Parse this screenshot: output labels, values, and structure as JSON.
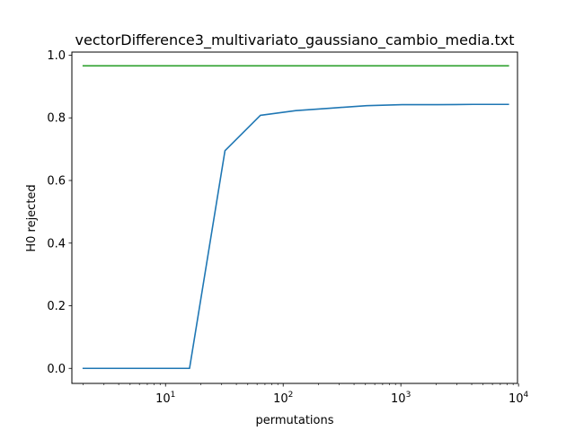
{
  "chart_data": {
    "type": "line",
    "title": "vectorDifference3_multivariato_gaussiano_cambio_media.txt",
    "xlabel": "permutations",
    "ylabel": "H0 rejected",
    "xscale": "log",
    "xlim": [
      1.6,
      9800
    ],
    "ylim": [
      -0.048,
      1.01
    ],
    "grid": false,
    "legend": "none",
    "xticks": [
      {
        "value": 10,
        "base": "10",
        "exp": "1"
      },
      {
        "value": 100,
        "base": "10",
        "exp": "2"
      },
      {
        "value": 1000,
        "base": "10",
        "exp": "3"
      },
      {
        "value": 10000,
        "base": "10",
        "exp": "4"
      }
    ],
    "yticks": [
      {
        "value": 0.0,
        "label": "0.0"
      },
      {
        "value": 0.2,
        "label": "0.2"
      },
      {
        "value": 0.4,
        "label": "0.4"
      },
      {
        "value": 0.6,
        "label": "0.6"
      },
      {
        "value": 0.8,
        "label": "0.8"
      },
      {
        "value": 1.0,
        "label": "1.0"
      }
    ],
    "series": [
      {
        "color": "#1f77b4",
        "x": [
          2,
          4,
          8,
          16,
          32,
          64,
          128,
          256,
          512,
          1024,
          2048,
          4096,
          8192
        ],
        "values": [
          0.0,
          0.0,
          0.0,
          0.0,
          0.695,
          0.808,
          0.823,
          0.831,
          0.839,
          0.842,
          0.842,
          0.843,
          0.843
        ]
      },
      {
        "color": "#2ca02c",
        "x": [
          2,
          8192
        ],
        "values": [
          0.966,
          0.966
        ]
      }
    ]
  }
}
